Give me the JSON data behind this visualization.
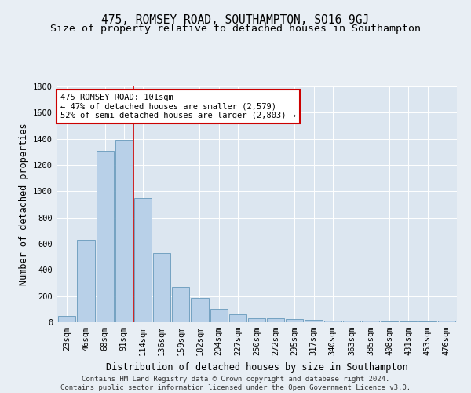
{
  "title": "475, ROMSEY ROAD, SOUTHAMPTON, SO16 9GJ",
  "subtitle": "Size of property relative to detached houses in Southampton",
  "xlabel": "Distribution of detached houses by size in Southampton",
  "ylabel": "Number of detached properties",
  "categories": [
    "23sqm",
    "46sqm",
    "68sqm",
    "91sqm",
    "114sqm",
    "136sqm",
    "159sqm",
    "182sqm",
    "204sqm",
    "227sqm",
    "250sqm",
    "272sqm",
    "295sqm",
    "317sqm",
    "340sqm",
    "363sqm",
    "385sqm",
    "408sqm",
    "431sqm",
    "453sqm",
    "476sqm"
  ],
  "values": [
    50,
    630,
    1310,
    1390,
    950,
    530,
    270,
    185,
    100,
    62,
    30,
    30,
    27,
    20,
    15,
    12,
    10,
    8,
    5,
    4,
    10
  ],
  "bar_color": "#b8d0e8",
  "bar_edge_color": "#6699bb",
  "vline_x": 3.5,
  "vline_color": "#cc0000",
  "annotation_text": "475 ROMSEY ROAD: 101sqm\n← 47% of detached houses are smaller (2,579)\n52% of semi-detached houses are larger (2,803) →",
  "annotation_box_facecolor": "#ffffff",
  "annotation_box_edgecolor": "#cc0000",
  "footer_line1": "Contains HM Land Registry data © Crown copyright and database right 2024.",
  "footer_line2": "Contains public sector information licensed under the Open Government Licence v3.0.",
  "ylim": [
    0,
    1800
  ],
  "yticks": [
    0,
    200,
    400,
    600,
    800,
    1000,
    1200,
    1400,
    1600,
    1800
  ],
  "fig_facecolor": "#e8eef4",
  "plot_facecolor": "#dce6f0",
  "title_fontsize": 10.5,
  "subtitle_fontsize": 9.5,
  "axis_label_fontsize": 8.5,
  "tick_fontsize": 7.5,
  "footer_fontsize": 6.5,
  "annotation_fontsize": 7.5
}
